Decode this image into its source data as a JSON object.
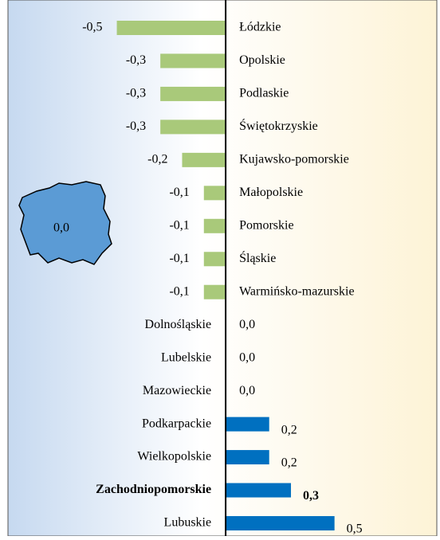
{
  "chart_data": {
    "type": "hbar",
    "categories": [
      "Łódzkie",
      "Opolskie",
      "Podlaskie",
      "Świętokrzyskie",
      "Kujawsko-pomorskie",
      "Małopolskie",
      "Pomorskie",
      "Śląskie",
      "Warmińsko-mazurskie",
      "Dolnośląskie",
      "Lubelskie",
      "Mazowieckie",
      "Podkarpackie",
      "Wielkopolskie",
      "Zachodniopomorskie",
      "Lubuskie"
    ],
    "values": [
      -0.5,
      -0.3,
      -0.3,
      -0.3,
      -0.2,
      -0.1,
      -0.1,
      -0.1,
      -0.1,
      0.0,
      0.0,
      0.0,
      0.2,
      0.2,
      0.3,
      0.5
    ],
    "value_labels": [
      "-0,5",
      "-0,3",
      "-0,3",
      "-0,3",
      "-0,2",
      "-0,1",
      "-0,1",
      "-0,1",
      "-0,1",
      "0,0",
      "0,0",
      "0,0",
      "0,2",
      "0,2",
      "0,3",
      "0,5"
    ],
    "negative_color": "#a9c97a",
    "positive_color": "#0070c0",
    "highlight_index": 14,
    "xlim": [
      -1.0,
      0.97
    ],
    "map_annotation": {
      "value": 0.0,
      "label": "0,0"
    }
  }
}
